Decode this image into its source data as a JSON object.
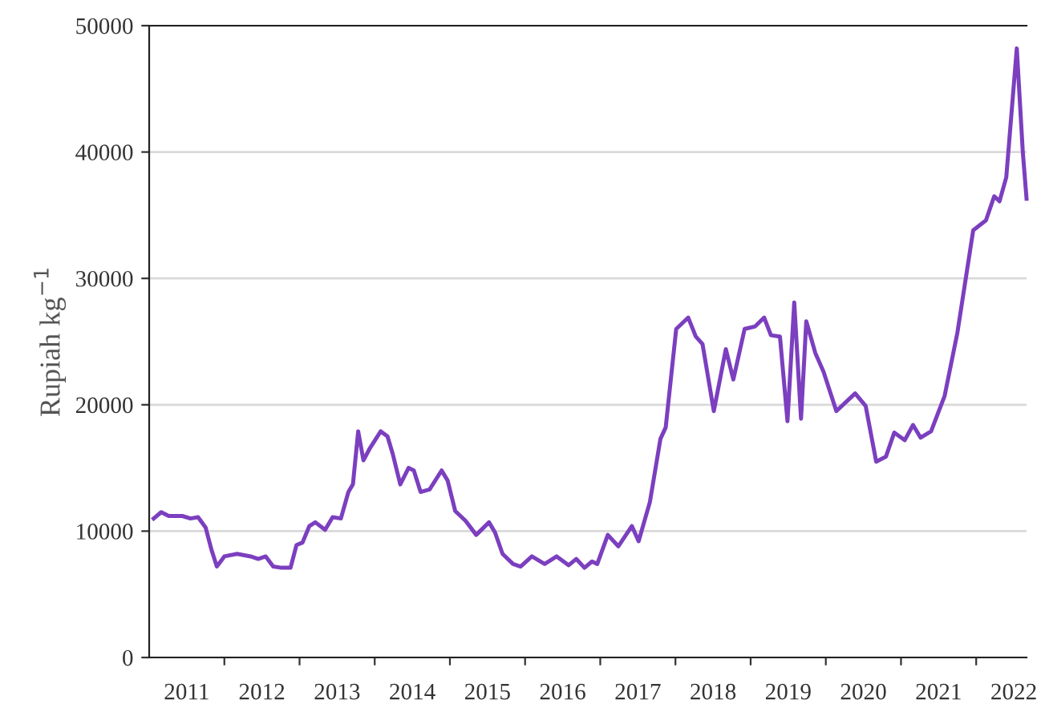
{
  "chart_data": {
    "type": "line",
    "ylabel": "Rupiah kg$^{−1}$",
    "xlim": [
      2011,
      2022.67
    ],
    "xticks": [
      {
        "value": 2011.5,
        "label": "2011"
      },
      {
        "value": 2012.5,
        "label": "2012"
      },
      {
        "value": 2013.5,
        "label": "2013"
      },
      {
        "value": 2014.5,
        "label": "2014"
      },
      {
        "value": 2015.5,
        "label": "2015"
      },
      {
        "value": 2016.5,
        "label": "2016"
      },
      {
        "value": 2017.5,
        "label": "2017"
      },
      {
        "value": 2018.5,
        "label": "2018"
      },
      {
        "value": 2019.5,
        "label": "2019"
      },
      {
        "value": 2020.5,
        "label": "2020"
      },
      {
        "value": 2021.5,
        "label": "2021"
      },
      {
        "value": 2022.5,
        "label": "2022"
      },
      {
        "value": 2012,
        "label": null
      },
      {
        "value": 2013,
        "label": null
      },
      {
        "value": 2014,
        "label": null
      },
      {
        "value": 2015,
        "label": null
      },
      {
        "value": 2016,
        "label": null
      },
      {
        "value": 2017,
        "label": null
      },
      {
        "value": 2018,
        "label": null
      },
      {
        "value": 2019,
        "label": null
      },
      {
        "value": 2020,
        "label": null
      },
      {
        "value": 2021,
        "label": null
      },
      {
        "value": 2022,
        "label": null
      }
    ],
    "ylim": [
      0,
      50000
    ],
    "yticks": [
      0,
      10000,
      20000,
      30000,
      40000,
      50000
    ],
    "grid": "y",
    "marker": "none",
    "line_style": "solid",
    "series": [
      {
        "color": "#7b3fbf",
        "x": [
          2011.06,
          2011.16,
          2011.26,
          2011.44,
          2011.55,
          2011.65,
          2011.75,
          2011.83,
          2011.9,
          2012.0,
          2012.17,
          2012.35,
          2012.45,
          2012.55,
          2012.65,
          2012.76,
          2012.88,
          2012.96,
          2013.04,
          2013.13,
          2013.21,
          2013.34,
          2013.44,
          2013.55,
          2013.65,
          2013.71,
          2013.78,
          2013.85,
          2013.93,
          2014.08,
          2014.17,
          2014.24,
          2014.34,
          2014.45,
          2014.52,
          2014.61,
          2014.73,
          2014.89,
          2014.97,
          2015.07,
          2015.21,
          2015.35,
          2015.52,
          2015.6,
          2015.7,
          2015.84,
          2015.94,
          2016.09,
          2016.26,
          2016.42,
          2016.58,
          2016.68,
          2016.79,
          2016.89,
          2016.96,
          2017.1,
          2017.24,
          2017.42,
          2017.51,
          2017.66,
          2017.8,
          2017.87,
          2018.01,
          2018.17,
          2018.27,
          2018.36,
          2018.51,
          2018.67,
          2018.77,
          2018.92,
          2019.06,
          2019.18,
          2019.27,
          2019.39,
          2019.49,
          2019.58,
          2019.67,
          2019.74,
          2019.86,
          2019.97,
          2020.14,
          2020.39,
          2020.53,
          2020.67,
          2020.8,
          2020.91,
          2021.05,
          2021.16,
          2021.26,
          2021.4,
          2021.58,
          2021.75,
          2021.96,
          2022.13,
          2022.24,
          2022.31,
          2022.4,
          2022.54,
          2022.62,
          2022.67
        ],
        "values": [
          11000,
          11500,
          11200,
          11200,
          11000,
          11100,
          10300,
          8500,
          7200,
          8000,
          8200,
          8000,
          7800,
          8000,
          7200,
          7100,
          7100,
          8900,
          9100,
          10400,
          10700,
          10100,
          11100,
          11000,
          13100,
          13700,
          17900,
          15600,
          16500,
          17900,
          17500,
          16100,
          13700,
          15000,
          14800,
          13100,
          13300,
          14800,
          14000,
          11600,
          10800,
          9700,
          10700,
          9900,
          8200,
          7400,
          7200,
          8000,
          7400,
          8000,
          7300,
          7800,
          7100,
          7600,
          7400,
          9700,
          8800,
          10400,
          9200,
          12300,
          17300,
          18200,
          26000,
          26900,
          25400,
          24800,
          19500,
          24400,
          22000,
          26000,
          26200,
          26900,
          25500,
          25400,
          18700,
          28100,
          18900,
          26600,
          24100,
          22600,
          19500,
          20900,
          19900,
          15500,
          15900,
          17800,
          17200,
          18400,
          17400,
          17900,
          20700,
          25700,
          33800,
          34600,
          36500,
          36100,
          38000,
          48200,
          40000,
          36300
        ]
      }
    ]
  }
}
